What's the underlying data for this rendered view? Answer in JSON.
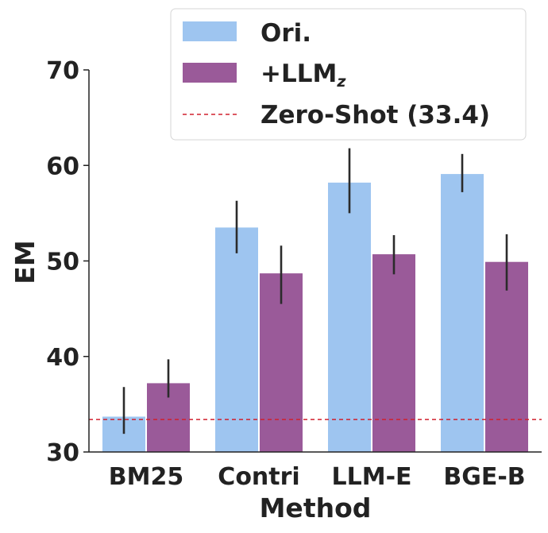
{
  "chart_data": {
    "type": "bar",
    "categories": [
      "BM25",
      "Contri",
      "LLM-E",
      "BGE-B"
    ],
    "series": [
      {
        "name": "Ori.",
        "color": "#9ec5f0",
        "values": [
          33.7,
          53.5,
          58.2,
          59.1
        ],
        "err_low": [
          31.9,
          50.8,
          55.0,
          57.2
        ],
        "err_high": [
          36.8,
          56.3,
          61.8,
          61.2
        ]
      },
      {
        "name": "+LLM",
        "name_subscript": "z",
        "color": "#9a5a99",
        "values": [
          37.2,
          48.7,
          50.7,
          49.9
        ],
        "err_low": [
          35.7,
          45.5,
          48.6,
          46.9
        ],
        "err_high": [
          39.7,
          51.6,
          52.7,
          52.8
        ]
      }
    ],
    "reference_line": {
      "label": "Zero-Shot (33.4)",
      "value": 33.4,
      "color": "#d0202e",
      "style": "dashed"
    },
    "xlabel": "Method",
    "ylabel": "EM",
    "ylim": [
      30,
      70
    ],
    "yticks": [
      30,
      40,
      50,
      60,
      70
    ],
    "legend_position": "top-right",
    "grid": false
  }
}
